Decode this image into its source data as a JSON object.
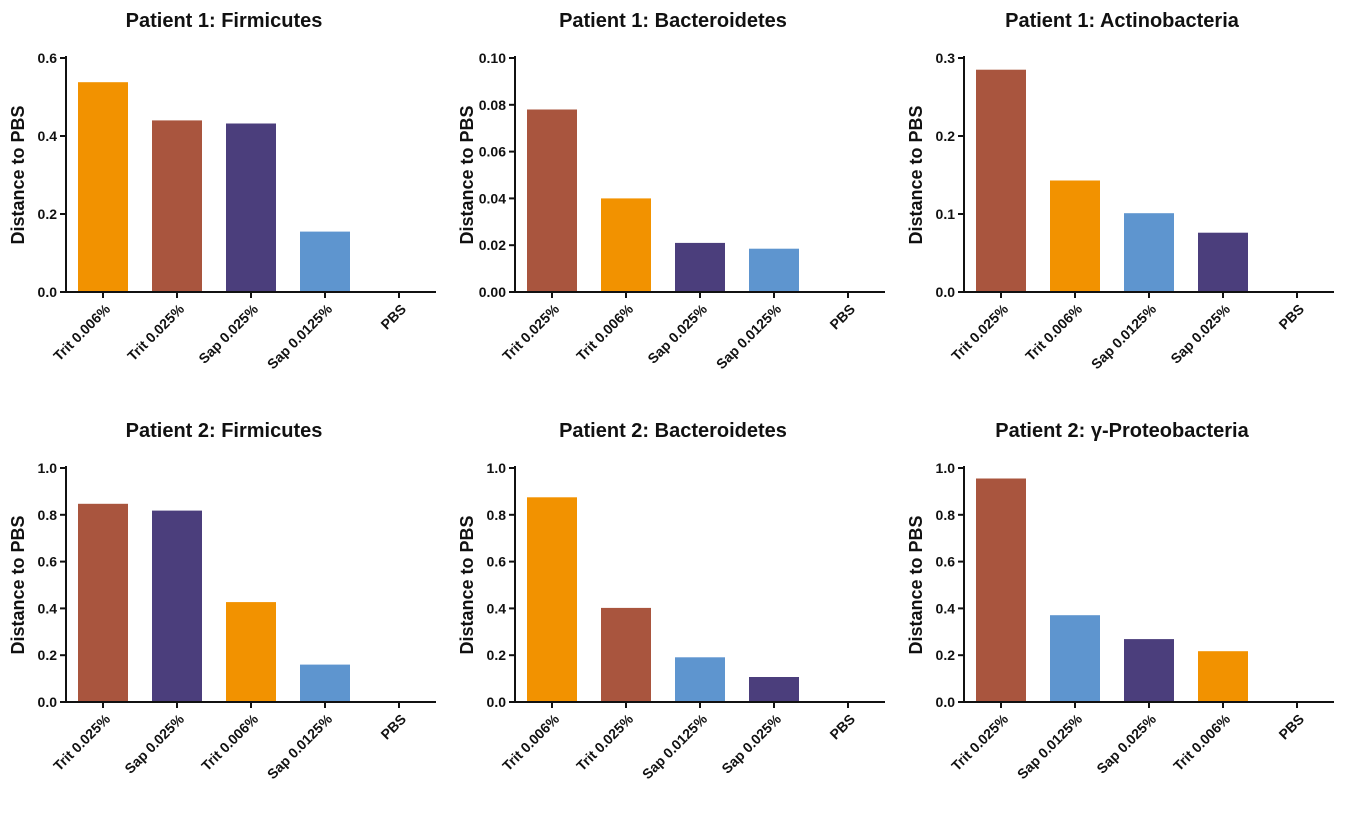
{
  "colors": {
    "Trit 0.006%": "#f29200",
    "Trit 0.025%": "#a9553e",
    "Sap 0.025%": "#4b3e7c",
    "Sap 0.0125%": "#5e95cf",
    "PBS": "#5e95cf"
  },
  "chart_data": [
    {
      "type": "bar",
      "title": "Patient 1: Firmicutes",
      "ylabel": "Distance to PBS",
      "xlabel": "",
      "categories": [
        "Trit 0.006%",
        "Trit 0.025%",
        "Sap 0.025%",
        "Sap 0.0125%",
        "PBS"
      ],
      "values": [
        0.538,
        0.44,
        0.432,
        0.155,
        0
      ],
      "ylim": [
        0,
        0.6
      ],
      "yticks": [
        "0.0",
        "0.2",
        "0.4",
        "0.6"
      ],
      "grid": false,
      "legend": "none"
    },
    {
      "type": "bar",
      "title": "Patient 1: Bacteroidetes",
      "ylabel": "Distance to PBS",
      "xlabel": "",
      "categories": [
        "Trit 0.025%",
        "Trit 0.006%",
        "Sap 0.025%",
        "Sap 0.0125%",
        "PBS"
      ],
      "values": [
        0.078,
        0.04,
        0.021,
        0.0185,
        0
      ],
      "ylim": [
        0,
        0.1
      ],
      "yticks": [
        "0.00",
        "0.02",
        "0.04",
        "0.06",
        "0.08",
        "0.10"
      ],
      "grid": false,
      "legend": "none"
    },
    {
      "type": "bar",
      "title": "Patient 1: Actinobacteria",
      "ylabel": "Distance to PBS",
      "xlabel": "",
      "categories": [
        "Trit 0.025%",
        "Trit 0.006%",
        "Sap 0.0125%",
        "Sap 0.025%",
        "PBS"
      ],
      "values": [
        0.285,
        0.143,
        0.101,
        0.076,
        0
      ],
      "ylim": [
        0,
        0.3
      ],
      "yticks": [
        "0.0",
        "0.1",
        "0.2",
        "0.3"
      ],
      "grid": false,
      "legend": "none"
    },
    {
      "type": "bar",
      "title": "Patient 2: Firmicutes",
      "ylabel": "Distance to PBS",
      "xlabel": "",
      "categories": [
        "Trit 0.025%",
        "Sap 0.025%",
        "Trit 0.006%",
        "Sap 0.0125%",
        "PBS"
      ],
      "values": [
        0.847,
        0.818,
        0.427,
        0.16,
        0
      ],
      "ylim": [
        0,
        1.0
      ],
      "yticks": [
        "0.0",
        "0.2",
        "0.4",
        "0.6",
        "0.8",
        "1.0"
      ],
      "grid": false,
      "legend": "none"
    },
    {
      "type": "bar",
      "title": "Patient 2: Bacteroidetes",
      "ylabel": "Distance to PBS",
      "xlabel": "",
      "categories": [
        "Trit 0.006%",
        "Trit 0.025%",
        "Sap 0.0125%",
        "Sap 0.025%",
        "PBS"
      ],
      "values": [
        0.875,
        0.402,
        0.191,
        0.107,
        0
      ],
      "ylim": [
        0,
        1.0
      ],
      "yticks": [
        "0.0",
        "0.2",
        "0.4",
        "0.6",
        "0.8",
        "1.0"
      ],
      "grid": false,
      "legend": "none"
    },
    {
      "type": "bar",
      "title": "Patient 2: γ-Proteobacteria",
      "ylabel": "Distance to PBS",
      "xlabel": "",
      "categories": [
        "Trit 0.025%",
        "Sap 0.0125%",
        "Sap 0.025%",
        "Trit 0.006%",
        "PBS"
      ],
      "values": [
        0.955,
        0.371,
        0.269,
        0.217,
        0
      ],
      "ylim": [
        0,
        1.0
      ],
      "yticks": [
        "0.0",
        "0.2",
        "0.4",
        "0.6",
        "0.8",
        "1.0"
      ],
      "grid": false,
      "legend": "none"
    }
  ]
}
